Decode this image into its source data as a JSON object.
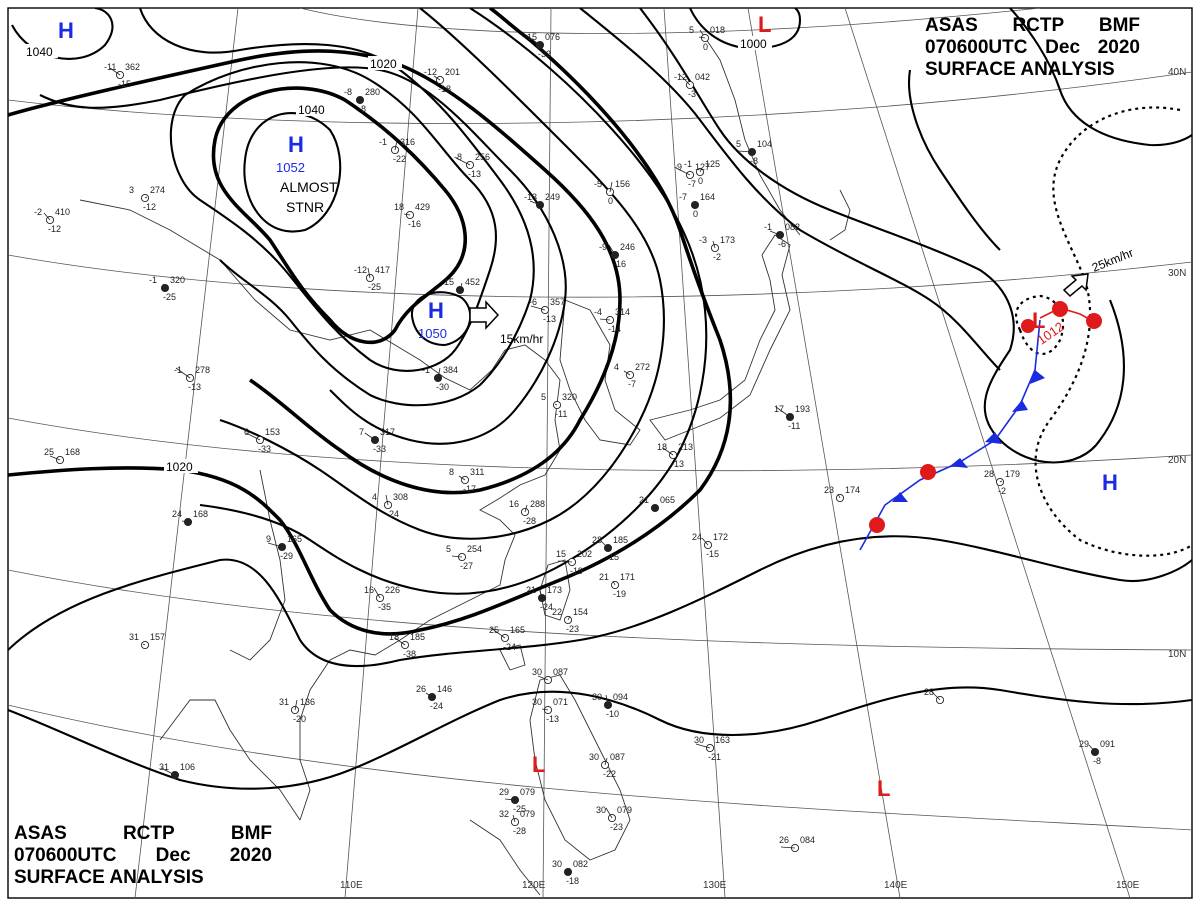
{
  "header": {
    "line1": [
      "ASAS",
      "RCTP",
      "BMF"
    ],
    "line2": [
      "070600UTC",
      "Dec",
      "2020"
    ],
    "line3": "SURFACE ANALYSIS"
  },
  "longitudes": [
    "110E",
    "120E",
    "130E",
    "140E",
    "150E"
  ],
  "latitudes": [
    "40N",
    "30N",
    "20N",
    "10N"
  ],
  "isobar_labels": [
    "1040",
    "1020",
    "1040",
    "1020",
    "1000"
  ],
  "highs": [
    {
      "letter": "H",
      "pressure": ""
    },
    {
      "letter": "H",
      "pressure": "1052"
    },
    {
      "letter": "H",
      "pressure": "1050"
    },
    {
      "letter": "H",
      "pressure": ""
    }
  ],
  "lows": [
    {
      "letter": "L",
      "pressure": ""
    },
    {
      "letter": "L",
      "pressure": "1012"
    },
    {
      "letter": "L",
      "pressure": ""
    },
    {
      "letter": "L",
      "pressure": ""
    }
  ],
  "annotations": {
    "stationary_1": "ALMOST",
    "stationary_2": "STNR",
    "motion_high": "15km/hr",
    "motion_low": "25km/hr"
  },
  "stations": [
    {
      "t": "-15",
      "p": "076",
      "d": "-32"
    },
    {
      "t": "-11",
      "p": "362",
      "d": "-15"
    },
    {
      "t": "-12",
      "p": "201",
      "d": "-18"
    },
    {
      "t": "-8",
      "p": "280",
      "d": "-8"
    },
    {
      "t": "-1",
      "p": "316",
      "d": "-22"
    },
    {
      "t": "-8",
      "p": "256",
      "d": "-13"
    },
    {
      "t": "-13",
      "p": "249",
      "d": ""
    },
    {
      "t": "18",
      "p": "429",
      "d": "-16"
    },
    {
      "t": "-12",
      "p": "417",
      "d": "-25"
    },
    {
      "t": "15",
      "p": "452",
      "d": ""
    },
    {
      "t": "-6",
      "p": "357",
      "d": "-13"
    },
    {
      "t": "-4",
      "p": "314",
      "d": "-14"
    },
    {
      "t": "-9",
      "p": "246",
      "d": "-16"
    },
    {
      "t": "-3",
      "p": "173",
      "d": "-2"
    },
    {
      "t": "-1",
      "p": "125",
      "d": "0"
    },
    {
      "t": "5",
      "p": "104",
      "d": "-8"
    },
    {
      "t": "-12",
      "p": "042",
      "d": "-3"
    },
    {
      "t": "-2",
      "p": "410",
      "d": "-12"
    },
    {
      "t": "-1",
      "p": "320",
      "d": "-25"
    },
    {
      "t": "3",
      "p": "274",
      "d": "-12"
    },
    {
      "t": "-1",
      "p": "278",
      "d": "-13"
    },
    {
      "t": "7",
      "p": "317",
      "d": "-33"
    },
    {
      "t": "8",
      "p": "311",
      "d": "-17"
    },
    {
      "t": "5",
      "p": "320",
      "d": "-11"
    },
    {
      "t": "-1",
      "p": "384",
      "d": "-30"
    },
    {
      "t": "6",
      "p": "153",
      "d": "-33"
    },
    {
      "t": "25",
      "p": "168",
      "d": ""
    },
    {
      "t": "24",
      "p": "168",
      "d": ""
    },
    {
      "t": "4",
      "p": "308",
      "d": "-24"
    },
    {
      "t": "16",
      "p": "288",
      "d": "-28"
    },
    {
      "t": "9",
      "p": "165",
      "d": "-29"
    },
    {
      "t": "5",
      "p": "254",
      "d": "-27"
    },
    {
      "t": "16",
      "p": "226",
      "d": "-35"
    },
    {
      "t": "21",
      "p": "173",
      "d": "-24"
    },
    {
      "t": "22",
      "p": "154",
      "d": "-23"
    },
    {
      "t": "15",
      "p": "202",
      "d": "-19"
    },
    {
      "t": "23",
      "p": "185",
      "d": "-15"
    },
    {
      "t": "24",
      "p": "172",
      "d": "-15"
    },
    {
      "t": "21",
      "p": "171",
      "d": "-19"
    },
    {
      "t": "21",
      "p": "065",
      "d": ""
    },
    {
      "t": "25",
      "p": "165",
      "d": "-24"
    },
    {
      "t": "18",
      "p": "185",
      "d": "-38"
    },
    {
      "t": "26",
      "p": "146",
      "d": "-24"
    },
    {
      "t": "31",
      "p": "157",
      "d": ""
    },
    {
      "t": "31",
      "p": "136",
      "d": "-20"
    },
    {
      "t": "31",
      "p": "106",
      "d": ""
    },
    {
      "t": "30",
      "p": "087",
      "d": ""
    },
    {
      "t": "30",
      "p": "071",
      "d": "-13"
    },
    {
      "t": "30",
      "p": "094",
      "d": "-10"
    },
    {
      "t": "30",
      "p": "087",
      "d": "-22"
    },
    {
      "t": "30",
      "p": "163",
      "d": "-21"
    },
    {
      "t": "29",
      "p": "079",
      "d": "-25"
    },
    {
      "t": "30",
      "p": "079",
      "d": "-23"
    },
    {
      "t": "32",
      "p": "079",
      "d": "-28"
    },
    {
      "t": "30",
      "p": "082",
      "d": "-18"
    },
    {
      "t": "26",
      "p": "084",
      "d": ""
    },
    {
      "t": "28",
      "p": "",
      "d": ""
    },
    {
      "t": "29",
      "p": "091",
      "d": "-8"
    },
    {
      "t": "23",
      "p": "174",
      "d": ""
    },
    {
      "t": "28",
      "p": "179",
      "d": "-2"
    },
    {
      "t": "17",
      "p": "193",
      "d": "-11"
    },
    {
      "t": "18",
      "p": "213",
      "d": "-13"
    },
    {
      "t": "4",
      "p": "272",
      "d": "-7"
    },
    {
      "t": "-7",
      "p": "164",
      "d": "0"
    },
    {
      "t": "-5",
      "p": "156",
      "d": "0"
    },
    {
      "t": "-9",
      "p": "127",
      "d": "-7"
    },
    {
      "t": "-1",
      "p": "082",
      "d": "-6"
    },
    {
      "t": "5",
      "p": "018",
      "d": "0"
    }
  ]
}
